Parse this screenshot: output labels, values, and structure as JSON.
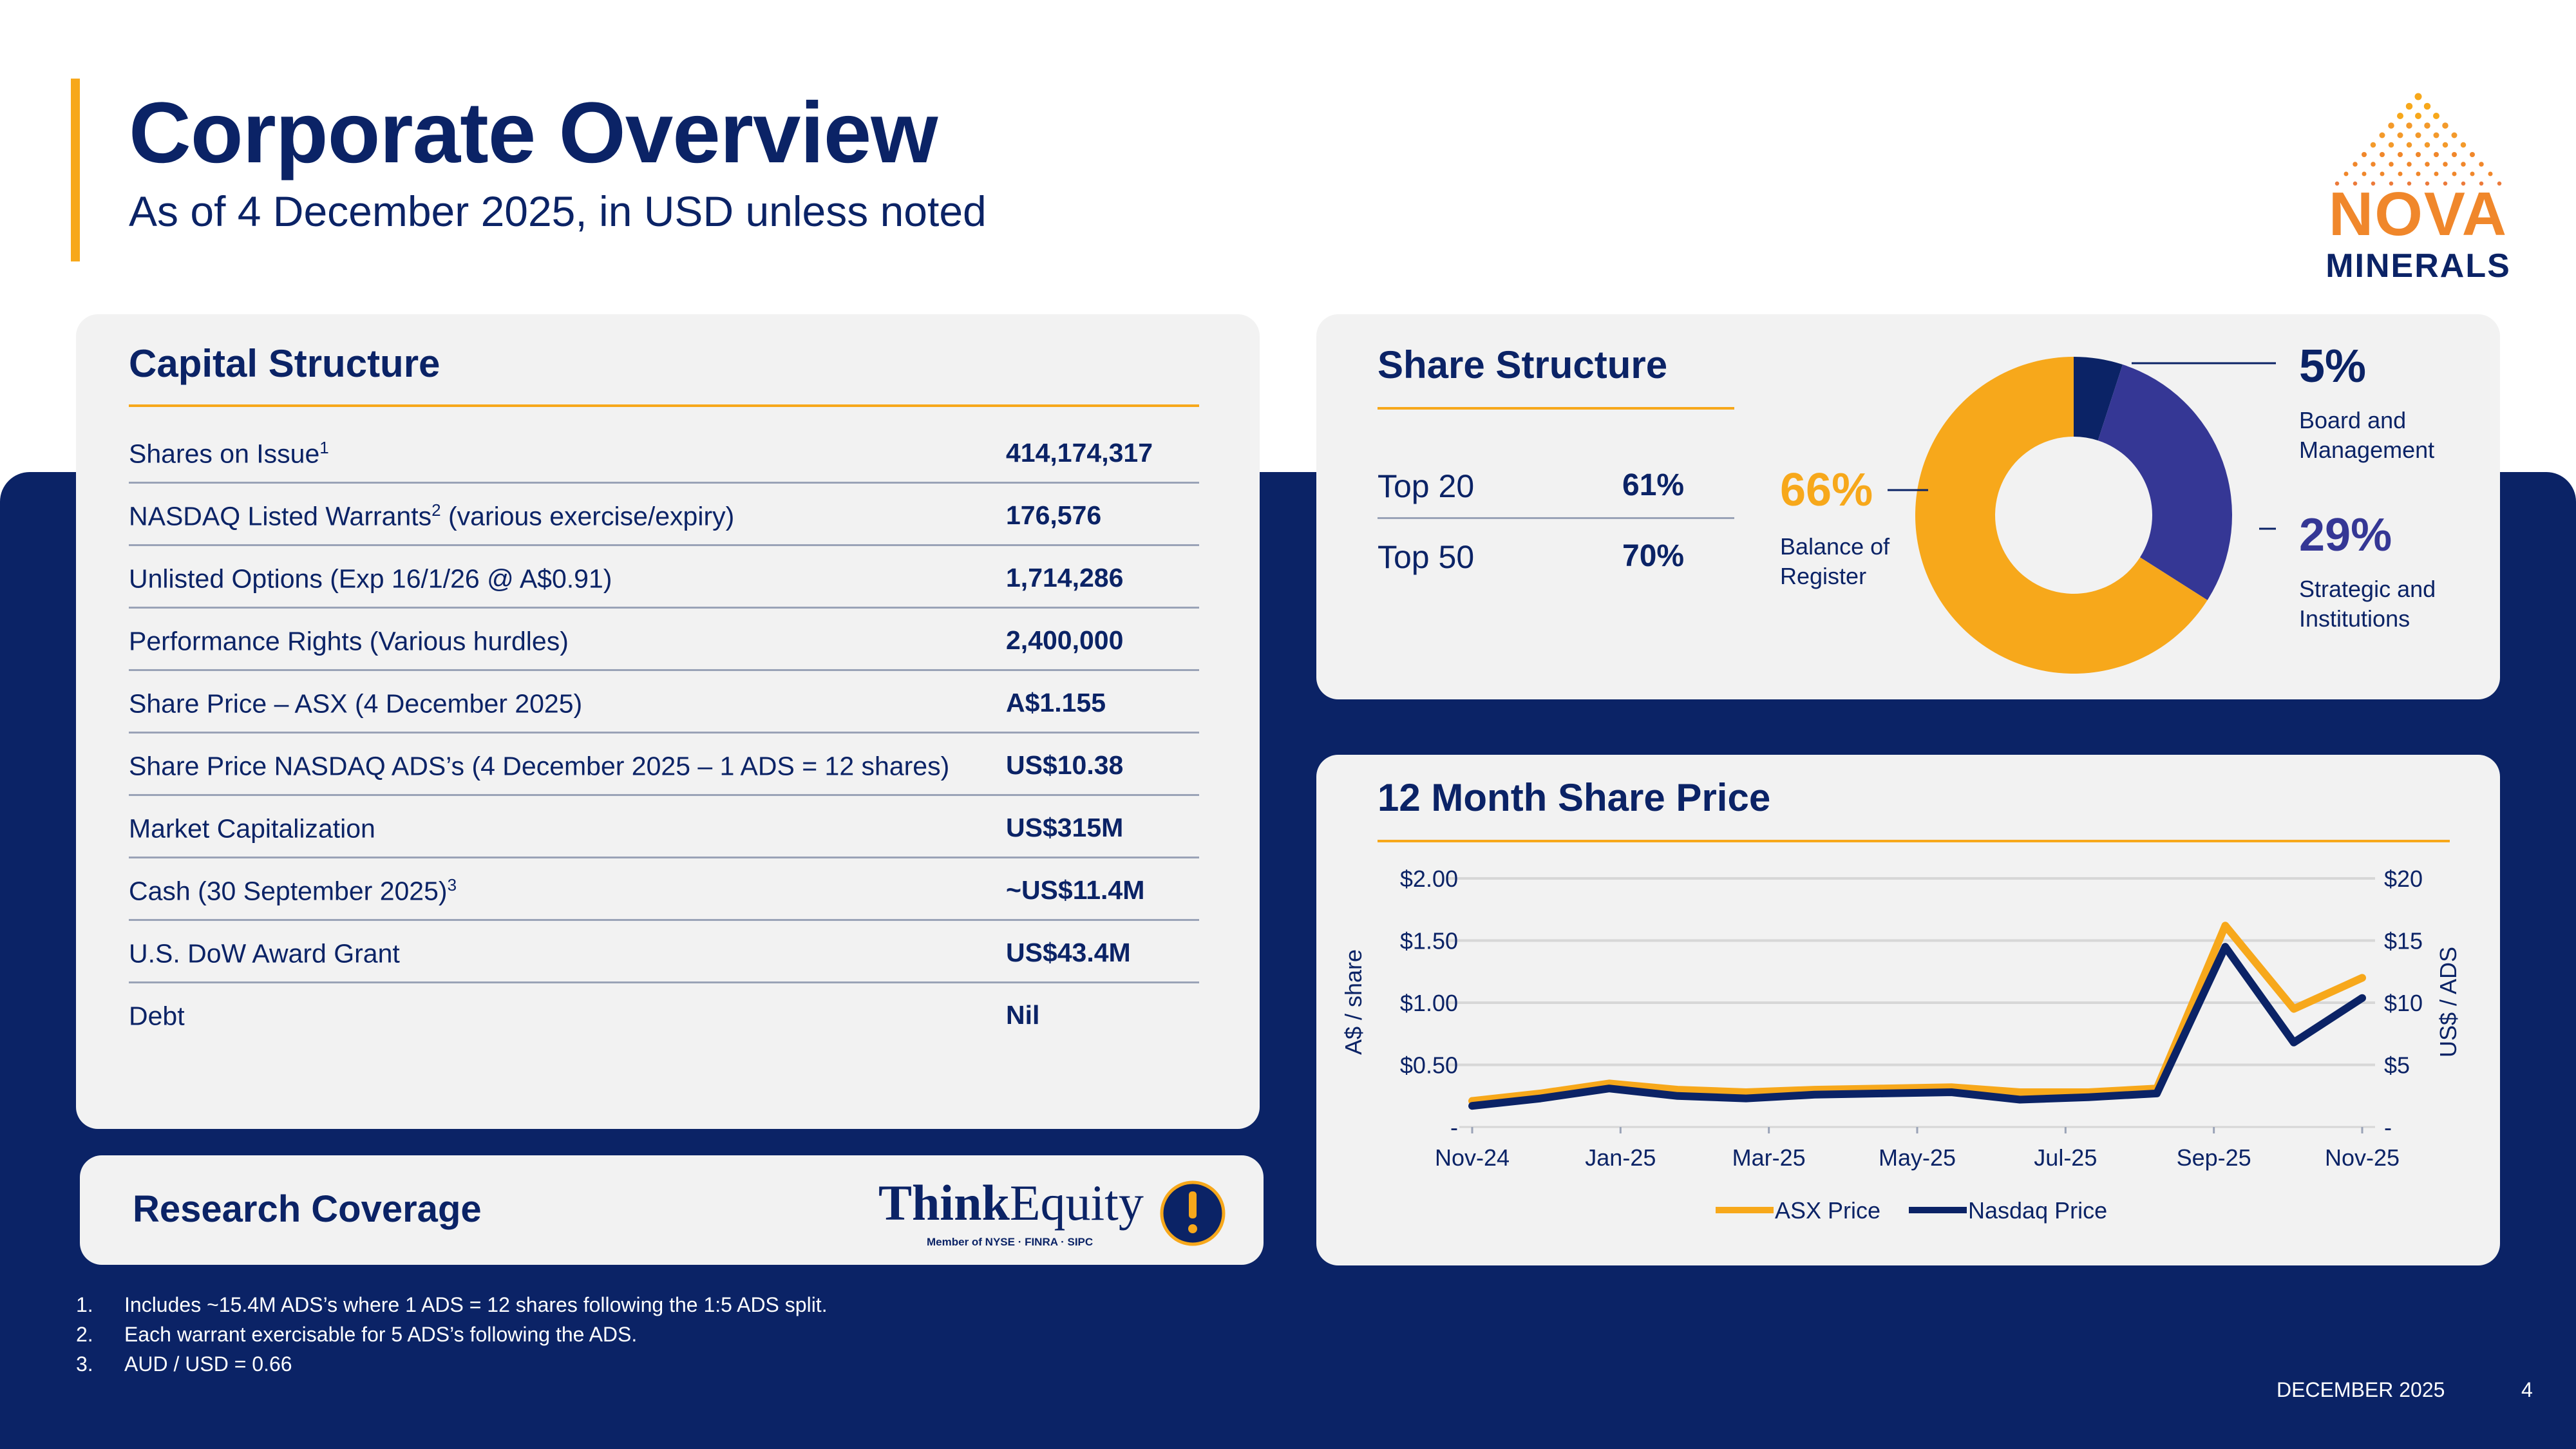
{
  "header": {
    "title": "Corporate Overview",
    "subtitle": "As of 4 December 2025, in USD unless noted"
  },
  "logo": {
    "line1": "NOVA",
    "line2": "MINERALS"
  },
  "capital_structure": {
    "title": "Capital Structure",
    "rows": [
      {
        "label": "Shares on Issue",
        "sup": "1",
        "label_tail": "",
        "value": "414,174,317"
      },
      {
        "label": "NASDAQ Listed Warrants",
        "sup": "2",
        "label_tail": " (various exercise/expiry)",
        "value": "176,576"
      },
      {
        "label": "Unlisted Options (Exp 16/1/26 @ A$0.91)",
        "sup": "",
        "label_tail": "",
        "value": "1,714,286"
      },
      {
        "label": "Performance Rights (Various hurdles)",
        "sup": "",
        "label_tail": "",
        "value": "2,400,000"
      },
      {
        "label": "Share Price – ASX (4 December 2025)",
        "sup": "",
        "label_tail": "",
        "value": "A$1.155"
      },
      {
        "label": "Share Price NASDAQ ADS’s (4 December 2025 – 1 ADS = 12 shares)",
        "sup": "",
        "label_tail": "",
        "value": "US$10.38"
      },
      {
        "label": "Market Capitalization",
        "sup": "",
        "label_tail": "",
        "value": "US$315M"
      },
      {
        "label": "Cash (30 September 2025)",
        "sup": "3",
        "label_tail": "",
        "value": "~US$11.4M"
      },
      {
        "label": "U.S. DoW Award Grant",
        "sup": "",
        "label_tail": "",
        "value": "US$43.4M"
      },
      {
        "label": "Debt",
        "sup": "",
        "label_tail": "",
        "value": "Nil"
      }
    ]
  },
  "share_structure": {
    "title": "Share Structure",
    "top_holders": [
      {
        "label": "Top 20",
        "value": "61%"
      },
      {
        "label": "Top 50",
        "value": "70%"
      }
    ],
    "donut": {
      "slices": [
        {
          "pct_label": "66%",
          "value": 66,
          "line1": "Balance of",
          "line2": "Register",
          "color": "#f7a81b"
        },
        {
          "pct_label": "29%",
          "value": 29,
          "line1": "Strategic and",
          "line2": "Institutions",
          "color": "#353795"
        },
        {
          "pct_label": "5%",
          "value": 5,
          "line1": "Board and",
          "line2": "Management",
          "color": "#0b2366"
        }
      ]
    }
  },
  "share_price_chart": {
    "title": "12 Month Share Price",
    "chart_data": {
      "type": "line",
      "x_ticks": [
        "Nov-24",
        "Jan-25",
        "Mar-25",
        "May-25",
        "Jul-25",
        "Sep-25",
        "Nov-25"
      ],
      "y_left_label": "A$ / share",
      "y_left_ticks": [
        "-",
        "$0.50",
        "$1.00",
        "$1.50",
        "$2.00"
      ],
      "y_left_range": [
        0,
        2
      ],
      "y_right_label": "US$ / ADS",
      "y_right_ticks": [
        "-",
        "$5",
        "$10",
        "$15",
        "$20"
      ],
      "y_right_range": [
        0,
        20
      ],
      "series": [
        {
          "name": "ASX Price",
          "color": "#f7a81b",
          "x": [
            "Nov-24",
            "Dec-24",
            "Jan-25",
            "Feb-25",
            "Mar-25",
            "Apr-25",
            "May-25",
            "Jun-25",
            "Jul-25",
            "Aug-25",
            "Sep-25",
            "Oct-25",
            "Nov-25",
            "Dec-25"
          ],
          "values": [
            0.21,
            0.27,
            0.35,
            0.3,
            0.28,
            0.3,
            0.31,
            0.32,
            0.28,
            0.28,
            0.31,
            1.62,
            0.95,
            1.2
          ]
        },
        {
          "name": "Nasdaq Price",
          "color": "#0b2366",
          "x": [
            "Nov-24",
            "Dec-24",
            "Jan-25",
            "Feb-25",
            "Mar-25",
            "Apr-25",
            "May-25",
            "Jun-25",
            "Jul-25",
            "Aug-25",
            "Sep-25",
            "Oct-25",
            "Nov-25",
            "Dec-25"
          ],
          "values": [
            1.7,
            2.3,
            3.1,
            2.5,
            2.3,
            2.6,
            2.7,
            2.8,
            2.2,
            2.4,
            2.7,
            14.5,
            6.8,
            10.38
          ]
        }
      ],
      "legend": [
        "ASX Price",
        "Nasdaq Price"
      ],
      "legend_position": "bottom",
      "grid": true
    }
  },
  "research_coverage": {
    "title": "Research Coverage",
    "firm_bold": "Think",
    "firm_regular": "Equity",
    "firm_tagline": "Member of NYSE · FINRA · SIPC"
  },
  "footnotes": [
    {
      "num": "1.",
      "text": "Includes ~15.4M ADS’s where 1 ADS = 12 shares following the 1:5 ADS split."
    },
    {
      "num": "2.",
      "text": "Each warrant exercisable for 5 ADS’s following the ADS."
    },
    {
      "num": "3.",
      "text": "AUD / USD = 0.66"
    }
  ],
  "footer": {
    "date": "DECEMBER 2025",
    "page": "4"
  }
}
